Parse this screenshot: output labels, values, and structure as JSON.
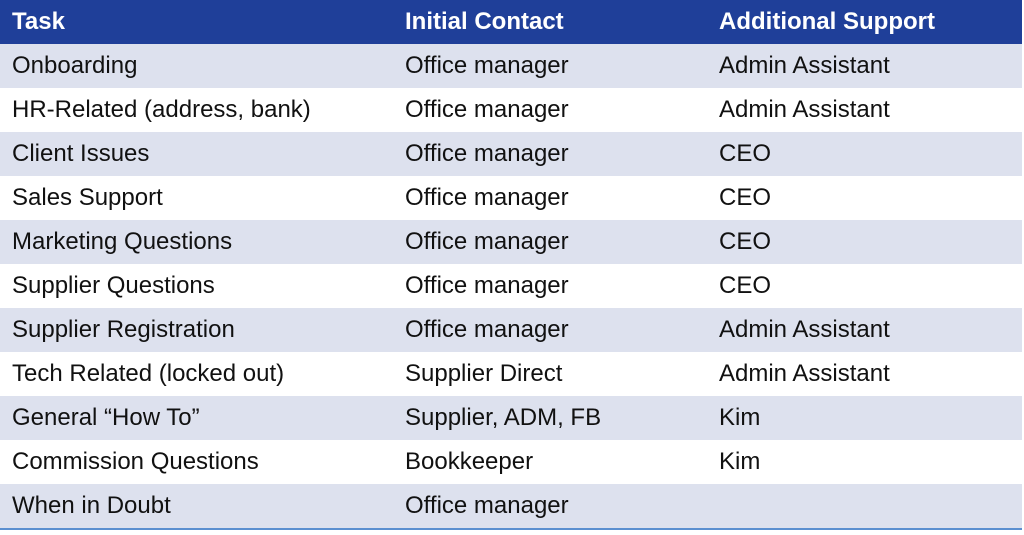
{
  "table": {
    "headers": [
      "Task",
      "Initial Contact",
      "Additional Support"
    ],
    "rows": [
      [
        "Onboarding",
        "Office manager",
        "Admin Assistant"
      ],
      [
        "HR-Related (address, bank)",
        "Office manager",
        "Admin Assistant"
      ],
      [
        "Client Issues",
        "Office manager",
        "CEO"
      ],
      [
        "Sales Support",
        "Office manager",
        "CEO"
      ],
      [
        "Marketing Questions",
        "Office manager",
        "CEO"
      ],
      [
        "Supplier Questions",
        "Office manager",
        "CEO"
      ],
      [
        "Supplier Registration",
        "Office manager",
        "Admin Assistant"
      ],
      [
        "Tech Related (locked out)",
        "Supplier Direct",
        "Admin Assistant"
      ],
      [
        "General “How To”",
        "Supplier, ADM, FB",
        "Kim"
      ],
      [
        "Commission Questions",
        "Bookkeeper",
        "Kim"
      ],
      [
        "When in Doubt",
        "Office manager",
        ""
      ]
    ]
  },
  "colors": {
    "header_bg": "#1f3f99",
    "band_bg": "#dde1ee",
    "rule": "#5b8fd0"
  }
}
